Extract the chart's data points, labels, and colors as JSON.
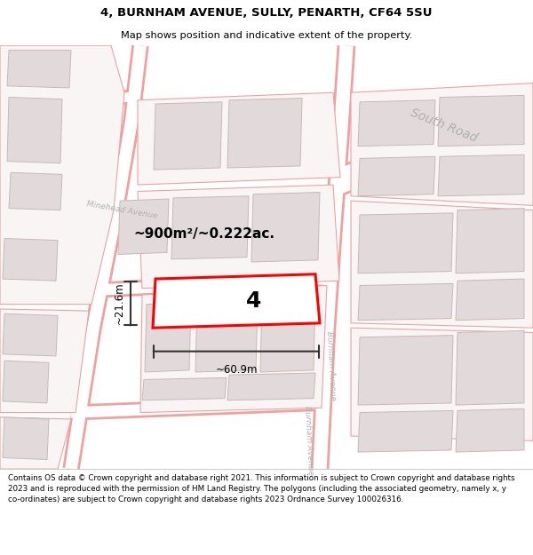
{
  "title": "4, BURNHAM AVENUE, SULLY, PENARTH, CF64 5SU",
  "subtitle": "Map shows position and indicative extent of the property.",
  "footer": "Contains OS data © Crown copyright and database right 2021. This information is subject to Crown copyright and database rights 2023 and is reproduced with the permission of HM Land Registry. The polygons (including the associated geometry, namely x, y co-ordinates) are subject to Crown copyright and database rights 2023 Ordnance Survey 100026316.",
  "area_label": "~900m²/~0.222ac.",
  "width_label": "~60.9m",
  "height_label": "~21.6m",
  "plot_number": "4",
  "bg_color": "#f7f4f4",
  "road_fill": "#ffffff",
  "road_outline": "#f0a0a0",
  "plot_outline_color": "#ff0000",
  "plot_fill_color": "#ffffff",
  "dim_line_color": "#333333",
  "building_fill": "#e2dada",
  "building_outline": "#c8b8b8",
  "road_label_color": "#b0b0b0",
  "block_outline": "#f0a0a0",
  "block_fill": "#faf5f5"
}
